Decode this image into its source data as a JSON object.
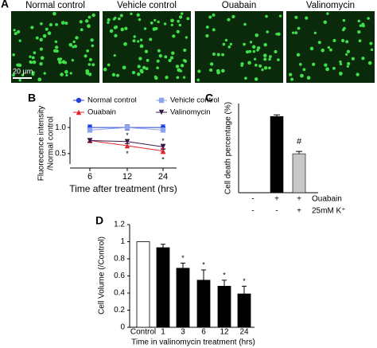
{
  "panel_a": {
    "panel_label": "A",
    "scale_bar": "20 μm",
    "images": [
      {
        "label": "Normal control"
      },
      {
        "label": "Vehicle control"
      },
      {
        "label": "Ouabain"
      },
      {
        "label": "Valinomycin"
      }
    ]
  },
  "chart_data": [
    {
      "type": "line",
      "panel_label": "B",
      "y_label": [
        "Fluorecence intensity",
        "/Normal control"
      ],
      "x_label": "Time after treatment (hrs)",
      "categories": [
        "6",
        "12",
        "24"
      ],
      "ylim": [
        0.3,
        1.2
      ],
      "yticks": [
        0.5,
        {
          "value": 1,
          "label": "1.0"
        }
      ],
      "series": [
        {
          "name": "Normal control",
          "color": "#1f3fd6",
          "marker": "circle",
          "values": [
            1.0,
            1.0,
            1.0
          ],
          "errors": [
            0.05,
            0.05,
            0.05
          ],
          "significance": [
            null,
            null,
            null
          ]
        },
        {
          "name": "Vehicle control",
          "color": "#8ea3f0",
          "marker": "square",
          "values": [
            0.95,
            1.0,
            0.95
          ],
          "errors": [
            0.04,
            0.04,
            0.04
          ],
          "significance": [
            null,
            null,
            null
          ]
        },
        {
          "name": "Ouabain",
          "color": "#e0262b",
          "marker": "triangle",
          "values": [
            0.75,
            0.65,
            0.55
          ],
          "errors": [
            0.03,
            0.04,
            0.05
          ],
          "significance": [
            null,
            "*",
            "*"
          ]
        },
        {
          "name": "Valinomycin",
          "color": "#3a1a4a",
          "marker": "down",
          "values": [
            0.75,
            0.73,
            0.63
          ],
          "errors": [
            0.03,
            0.04,
            0.05
          ],
          "significance": [
            null,
            "*",
            "*"
          ]
        }
      ]
    },
    {
      "type": "bar",
      "panel_label": "C",
      "y_label": "Cell death percentage (%)",
      "ylim": [
        0,
        55
      ],
      "values": [
        0,
        47,
        24
      ],
      "errors": [
        0,
        1,
        1.5
      ],
      "colors": [
        "#000000",
        "#000000",
        "#c8c8c8"
      ],
      "significance": [
        null,
        null,
        "#"
      ],
      "conditions": [
        {
          "name": "Ouabain",
          "values": [
            "-",
            "+",
            "+"
          ]
        },
        {
          "name": "25mM K⁺",
          "values": [
            "-",
            "-",
            "+"
          ]
        }
      ]
    },
    {
      "type": "bar",
      "panel_label": "D",
      "y_label": "Cell Volume (/Control)",
      "x_label": "Time in valinomycin treatment (hrs)",
      "categories": [
        "Control",
        "1",
        "3",
        "6",
        "12",
        "24"
      ],
      "ylim": [
        0,
        1.2
      ],
      "yticks": [
        0,
        0.2,
        0.4,
        0.6,
        0.8,
        1,
        1.2
      ],
      "values": [
        1,
        0.93,
        0.69,
        0.55,
        0.48,
        0.39
      ],
      "errors": [
        0,
        0.04,
        0.06,
        0.12,
        0.07,
        0.09
      ],
      "colors": [
        "#ffffff",
        "#000000",
        "#000000",
        "#000000",
        "#000000",
        "#000000"
      ],
      "significance": [
        null,
        null,
        "*",
        "*",
        "*",
        "*"
      ]
    }
  ]
}
